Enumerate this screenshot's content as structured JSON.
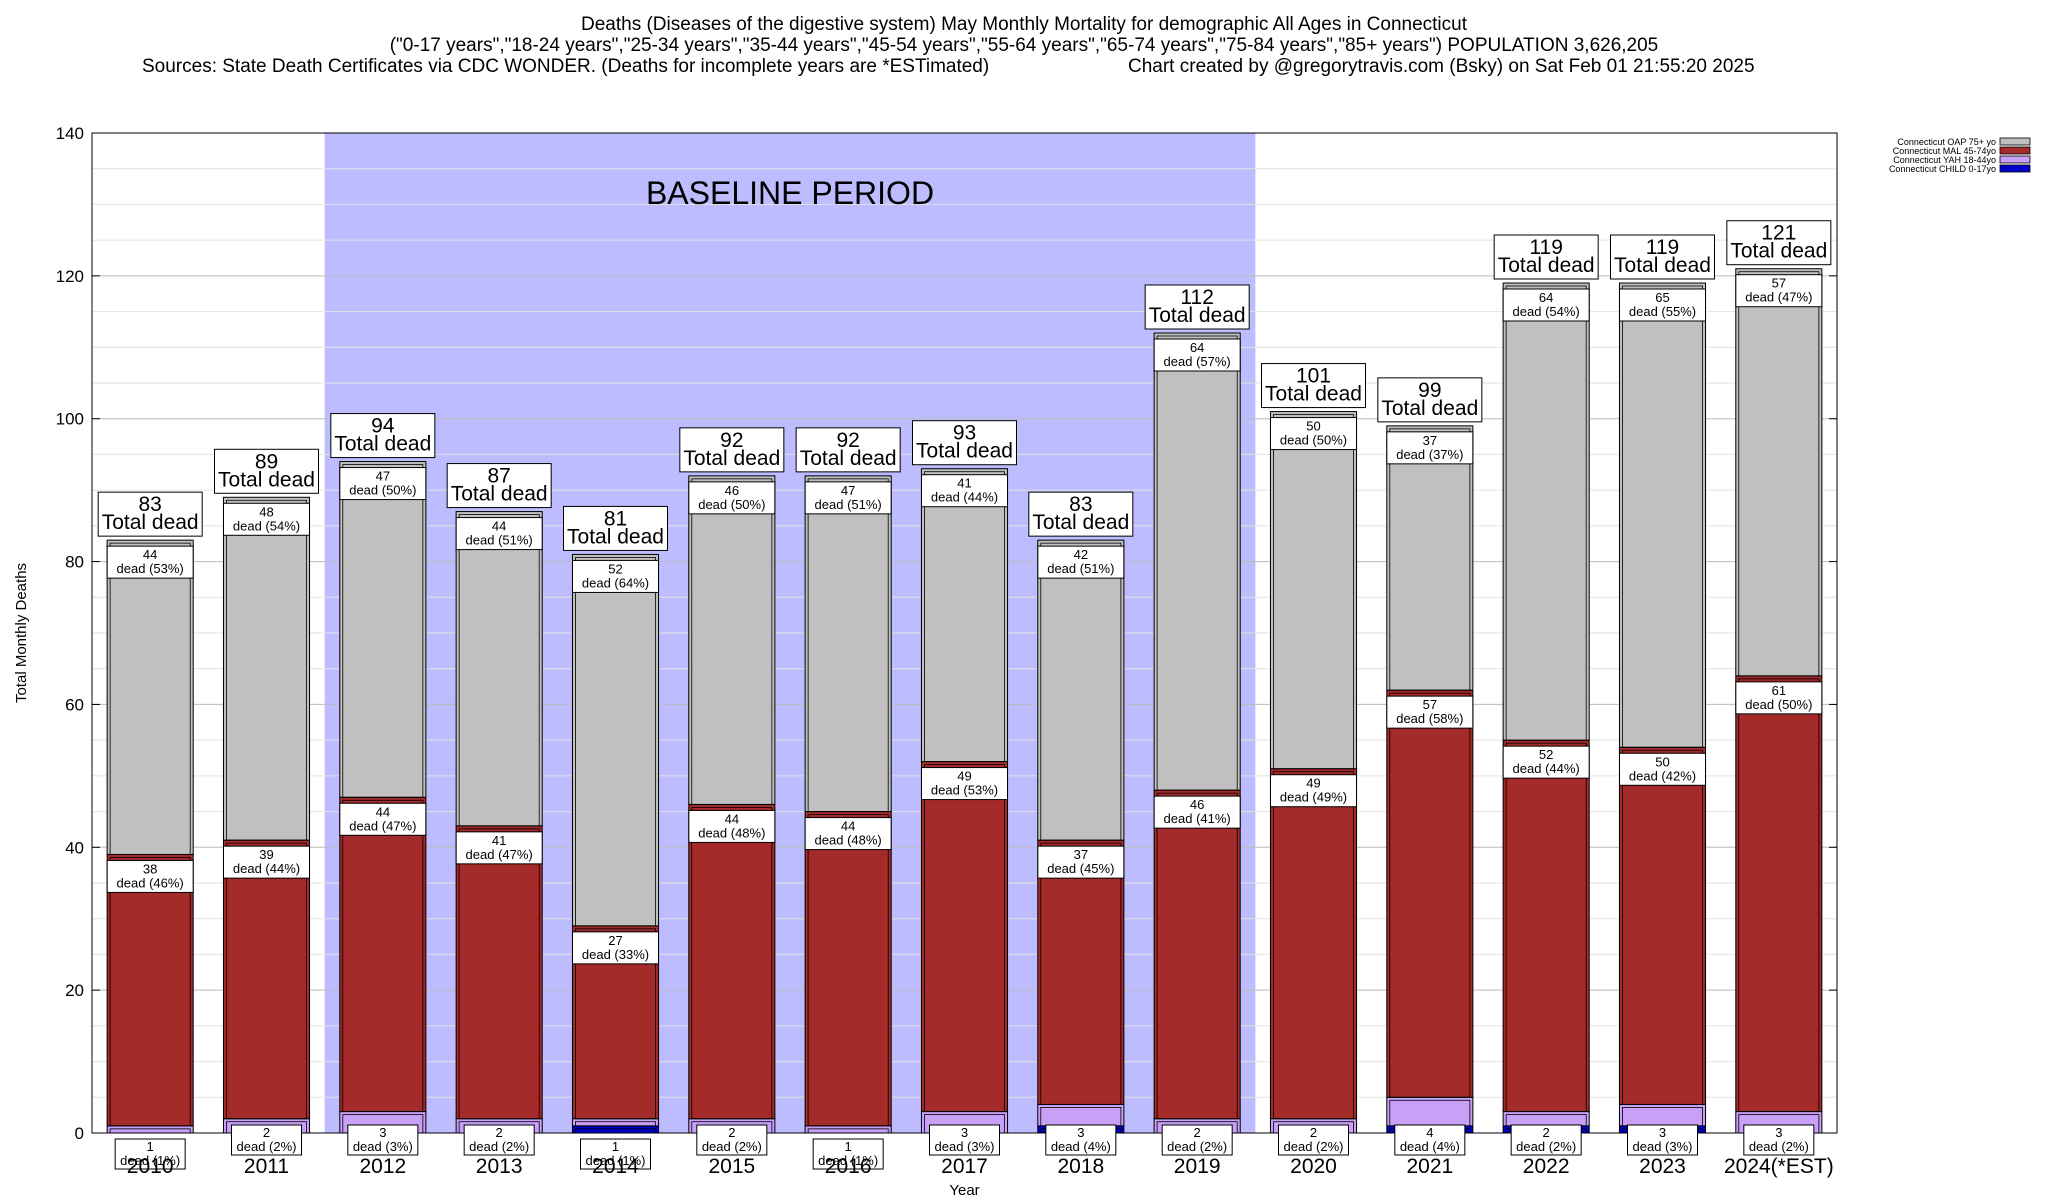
{
  "title": {
    "line1": "Deaths (Diseases of the digestive system) May Monthly Mortality for demographic All Ages in Connecticut",
    "line2": "(\"0-17 years\",\"18-24 years\",\"25-34 years\",\"35-44 years\",\"45-54 years\",\"55-64 years\",\"65-74 years\",\"75-84 years\",\"85+ years\") POPULATION 3,626,205",
    "sources": "Sources: State Death Certificates via CDC WONDER. (Deaths for incomplete years are *ESTimated)",
    "credit": "Chart created by @gregorytravis.com (Bsky) on Sat Feb 01 21:55:20 2025"
  },
  "chart_data": {
    "type": "bar",
    "stacked": true,
    "title": "Deaths (Diseases of the digestive system) May Monthly Mortality for demographic All Ages in Connecticut",
    "xlabel": "Year",
    "ylabel": "Total Monthly Deaths",
    "ylim": [
      0,
      140
    ],
    "yticks": [
      0,
      20,
      40,
      60,
      80,
      100,
      120,
      140
    ],
    "grid": "horizontal",
    "legend_position": "top-right",
    "baseline_label": "BASELINE PERIOD",
    "baseline_range": [
      "2012",
      "2019"
    ],
    "total_label": "Total dead",
    "dead_word": "dead",
    "categories": [
      "2010",
      "2011",
      "2012",
      "2013",
      "2014",
      "2015",
      "2016",
      "2017",
      "2018",
      "2019",
      "2020",
      "2021",
      "2022",
      "2023",
      "2024(*EST)"
    ],
    "totals": [
      83,
      89,
      94,
      87,
      81,
      92,
      92,
      93,
      83,
      112,
      101,
      99,
      119,
      119,
      121
    ],
    "series": [
      {
        "name": "Connecticut CHILD 0-17yo",
        "color": "#0000cc",
        "values": [
          0,
          0,
          0,
          0,
          1,
          0,
          0,
          0,
          1,
          0,
          0,
          1,
          1,
          1,
          0
        ],
        "pct": [
          0,
          0,
          0,
          0,
          1,
          0,
          0,
          0,
          1,
          0,
          0,
          1,
          1,
          1,
          0
        ]
      },
      {
        "name": "Connecticut YAH 18-44yo",
        "color": "#c8a0f8",
        "values": [
          1,
          2,
          3,
          2,
          1,
          2,
          1,
          3,
          3,
          2,
          2,
          4,
          2,
          3,
          3
        ],
        "pct": [
          1,
          2,
          3,
          2,
          1,
          2,
          1,
          3,
          4,
          2,
          2,
          4,
          2,
          3,
          2
        ]
      },
      {
        "name": "Connecticut MAL 45-74yo",
        "color": "#a52a2a",
        "values": [
          38,
          39,
          44,
          41,
          27,
          44,
          44,
          49,
          37,
          46,
          49,
          57,
          52,
          50,
          61
        ],
        "pct": [
          46,
          44,
          47,
          47,
          33,
          48,
          48,
          53,
          45,
          41,
          49,
          58,
          44,
          42,
          50
        ]
      },
      {
        "name": "Connecticut OAP 75+ yo",
        "color": "#c0c0c0",
        "values": [
          44,
          48,
          47,
          44,
          52,
          46,
          47,
          41,
          42,
          64,
          50,
          37,
          64,
          65,
          57
        ],
        "pct": [
          53,
          54,
          50,
          51,
          64,
          50,
          51,
          44,
          51,
          57,
          50,
          37,
          54,
          55,
          47
        ]
      }
    ]
  }
}
